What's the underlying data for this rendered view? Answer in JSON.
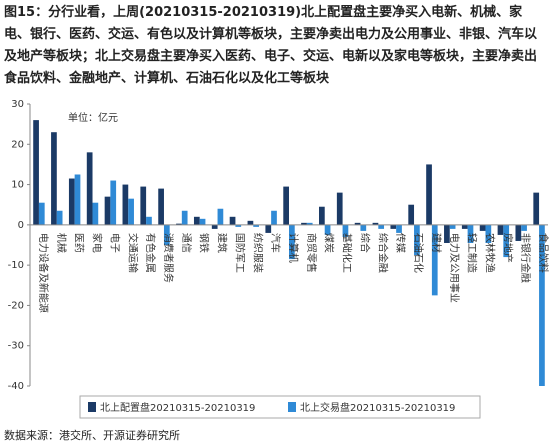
{
  "chart_data": {
    "type": "bar",
    "title": "图15：分行业看，上周(20210315-20210319)北上配置盘主要净买入电新、机械、家电、银行、医药、交运、有色以及计算机等板块，主要净卖出电力及公用事业、非银、汽车以及地产等板块；北上交易盘主要净买入医药、电子、交运、电新以及家电等板块，主要净卖出食品饮料、金融地产、计算机、石油石化以及化工等板块",
    "unit_label": "单位：亿元",
    "source": "数据来源：港交所、开源证券研究所",
    "categories": [
      "电力设备及新能源",
      "机械",
      "医药",
      "家电",
      "电子",
      "交通运输",
      "有色金属",
      "消费者服务",
      "通信",
      "钢铁",
      "建筑",
      "国防军工",
      "纺织服装",
      "汽车",
      "计算机",
      "商贸零售",
      "煤炭",
      "基础化工",
      "综合",
      "综合金融",
      "传媒",
      "石油石化",
      "建材",
      "电力及公用事业",
      "轻工制造",
      "农林牧渔",
      "房地产",
      "非银行金融",
      "食品饮料"
    ],
    "series": [
      {
        "name": "北上配置盘20210315-20210319",
        "color": "#1b3a66",
        "values": [
          26,
          23,
          11.5,
          18,
          7,
          10,
          9.5,
          9,
          0.3,
          2,
          -1,
          2,
          1,
          -2,
          9.5,
          0.5,
          4.5,
          8,
          0.5,
          0.5,
          -1,
          5,
          15,
          -4.5,
          -1,
          -1.5,
          -2.5,
          -4,
          8
        ]
      },
      {
        "name": "北上交易盘20210315-20210319",
        "color": "#2f8ad6",
        "values": [
          5.5,
          3.5,
          12.5,
          5.5,
          11,
          6.5,
          2,
          -5,
          3.5,
          1.5,
          4,
          -0.5,
          -0.5,
          3.5,
          -8.5,
          0.5,
          -2.5,
          -3,
          -1.5,
          -1,
          -2,
          -7.5,
          -17.5,
          -1,
          -4.5,
          -4.5,
          -8,
          -1.5,
          -40
        ]
      }
    ],
    "ylim": [
      -40,
      30
    ],
    "yticks": [
      -40,
      -30,
      -20,
      -10,
      0,
      10,
      20,
      30
    ]
  }
}
